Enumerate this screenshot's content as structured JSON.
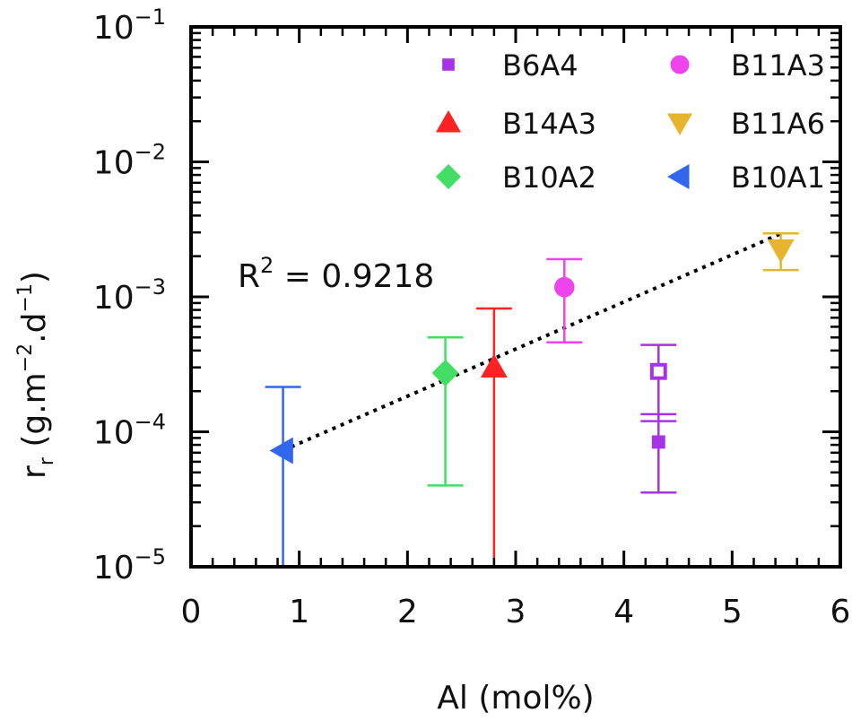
{
  "chart_data": {
    "type": "scatter",
    "title": "",
    "xlabel": "Al (mol%)",
    "ylabel": {
      "base": "r",
      "sub": "r",
      "units_pre": " (g.m",
      "exp1": "−2",
      "units_mid": ".d",
      "exp2": "−1",
      "units_post": ")"
    },
    "xlim": [
      0,
      6
    ],
    "ylim": [
      1e-05,
      0.1
    ],
    "yscale": "log",
    "x_ticks": [
      "0",
      "1",
      "2",
      "3",
      "4",
      "5",
      "6"
    ],
    "y_ticks": [
      {
        "value": 1e-05,
        "mant": "10",
        "exp": "−5"
      },
      {
        "value": 0.0001,
        "mant": "10",
        "exp": "−4"
      },
      {
        "value": 0.001,
        "mant": "10",
        "exp": "−3"
      },
      {
        "value": 0.01,
        "mant": "10",
        "exp": "−2"
      },
      {
        "value": 0.1,
        "mant": "10",
        "exp": "−1"
      }
    ],
    "grid": false,
    "legend_position": "top-right",
    "series": [
      {
        "name": "B6A4",
        "marker": "square",
        "color": "#a633e6",
        "points": [
          {
            "x": 4.32,
            "y": 0.00028,
            "yerr_low": 0.00012,
            "yerr_high": 0.00044,
            "filled": false
          },
          {
            "x": 4.32,
            "y": 8.4e-05,
            "yerr_low": 3.55e-05,
            "yerr_high": 0.000135,
            "filled": true
          }
        ]
      },
      {
        "name": "B11A3",
        "marker": "circle",
        "color": "#ee44ee",
        "points": [
          {
            "x": 3.45,
            "y": 0.00118,
            "yerr_low": 0.00046,
            "yerr_high": 0.0019,
            "filled": true
          }
        ]
      },
      {
        "name": "B14A3",
        "marker": "triangle-up",
        "color": "#ff2222",
        "points": [
          {
            "x": 2.8,
            "y": 0.0003,
            "yerr_low": 1e-05,
            "yerr_high": 0.00082,
            "filled": true
          }
        ]
      },
      {
        "name": "B11A6",
        "marker": "triangle-down",
        "color": "#e6b42e",
        "points": [
          {
            "x": 5.45,
            "y": 0.00224,
            "yerr_low": 0.00158,
            "yerr_high": 0.00295,
            "filled": true
          }
        ]
      },
      {
        "name": "B10A2",
        "marker": "diamond",
        "color": "#44dd66",
        "points": [
          {
            "x": 2.35,
            "y": 0.000273,
            "yerr_low": 4e-05,
            "yerr_high": 0.0005,
            "filled": true
          }
        ]
      },
      {
        "name": "B10A1",
        "marker": "triangle-left",
        "color": "#3366ee",
        "points": [
          {
            "x": 0.85,
            "y": 7.25e-05,
            "yerr_low": 1e-05,
            "yerr_high": 0.000215,
            "filled": true
          }
        ]
      }
    ],
    "fit_line": {
      "style": "dotted",
      "color": "#000000",
      "x": [
        0.85,
        5.45
      ],
      "y": [
        7.28e-05,
        0.00294
      ]
    },
    "annotation": {
      "base": "R",
      "exp": "2",
      "rest": " = 0.9218"
    }
  }
}
